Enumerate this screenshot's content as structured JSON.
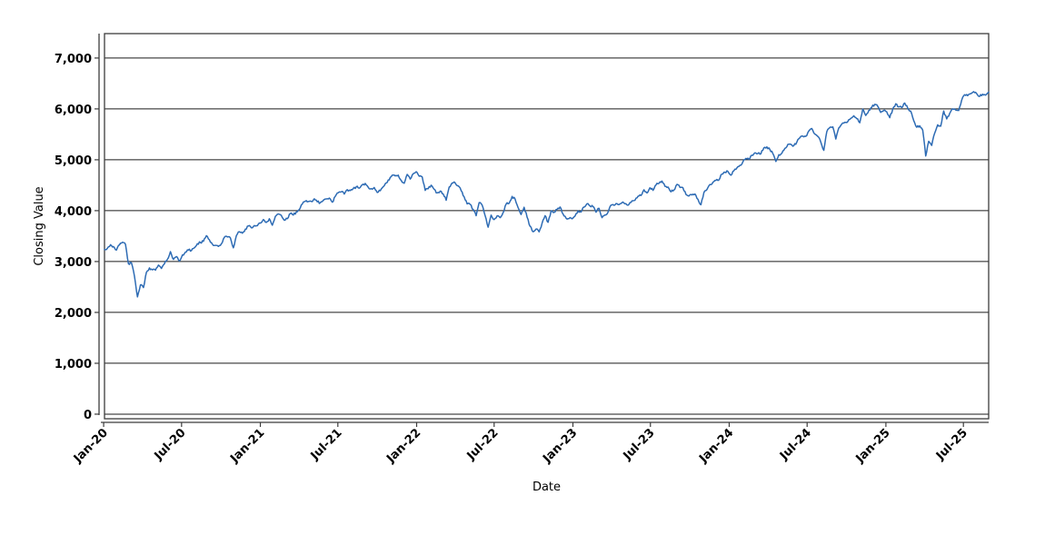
{
  "chart_data": {
    "type": "line",
    "title": "",
    "xlabel": "Date",
    "ylabel": "Closing Value",
    "legend": "none",
    "grid": "horizontal-only",
    "background_color": "#ffffff",
    "line_color": "#2d6bb4",
    "grid_color": "#1a1a1a",
    "ylim": [
      -90,
      7480
    ],
    "y_ticks": [
      0,
      1000,
      2000,
      3000,
      4000,
      5000,
      6000,
      7000
    ],
    "y_tick_labels": [
      "0",
      "1,000",
      "2,000",
      "3,000",
      "4,000",
      "5,000",
      "6,000",
      "7,000"
    ],
    "x_ticks": [
      {
        "label": "Jan-20",
        "date": "2020-01-01"
      },
      {
        "label": "Jul-20",
        "date": "2020-07-01"
      },
      {
        "label": "Jan-21",
        "date": "2021-01-01"
      },
      {
        "label": "Jul-21",
        "date": "2021-07-01"
      },
      {
        "label": "Jan-22",
        "date": "2022-01-01"
      },
      {
        "label": "Jul-22",
        "date": "2022-07-01"
      },
      {
        "label": "Jan-23",
        "date": "2023-01-01"
      },
      {
        "label": "Jul-23",
        "date": "2023-07-01"
      },
      {
        "label": "Jan-24",
        "date": "2024-01-01"
      },
      {
        "label": "Jul-24",
        "date": "2024-07-01"
      },
      {
        "label": "Jan-25",
        "date": "2025-01-01"
      },
      {
        "label": "Jul-25",
        "date": "2025-07-01"
      }
    ],
    "series": [
      {
        "name": "Closing Value",
        "start_date": "2020-01-03",
        "step_days": 7,
        "values": [
          3235,
          3265,
          3330,
          3295,
          3226,
          3328,
          3380,
          3338,
          2954,
          2972,
          2711,
          2305,
          2541,
          2489,
          2790,
          2875,
          2837,
          2831,
          2930,
          2864,
          2955,
          3044,
          3194,
          3041,
          3098,
          3009,
          3130,
          3185,
          3225,
          3216,
          3271,
          3351,
          3373,
          3397,
          3508,
          3427,
          3341,
          3319,
          3298,
          3348,
          3477,
          3484,
          3465,
          3270,
          3509,
          3585,
          3558,
          3638,
          3699,
          3663,
          3709,
          3703,
          3756,
          3825,
          3768,
          3841,
          3714,
          3887,
          3935,
          3907,
          3811,
          3842,
          3943,
          3913,
          3975,
          4020,
          4129,
          4185,
          4180,
          4181,
          4233,
          4174,
          4156,
          4204,
          4230,
          4247,
          4166,
          4281,
          4352,
          4370,
          4327,
          4412,
          4395,
          4437,
          4468,
          4442,
          4509,
          4535,
          4459,
          4433,
          4455,
          4357,
          4391,
          4471,
          4545,
          4605,
          4698,
          4683,
          4698,
          4595,
          4538,
          4712,
          4621,
          4726,
          4766,
          4677,
          4663,
          4398,
          4432,
          4501,
          4419,
          4349,
          4385,
          4329,
          4204,
          4463,
          4543,
          4546,
          4488,
          4393,
          4272,
          4132,
          4123,
          4024,
          3901,
          4158,
          4109,
          3901,
          3675,
          3912,
          3825,
          3899,
          3863,
          3962,
          4130,
          4145,
          4280,
          4228,
          4058,
          3924,
          4067,
          3873,
          3693,
          3586,
          3640,
          3583,
          3753,
          3901,
          3771,
          3993,
          3965,
          4026,
          4072,
          3934,
          3852,
          3845,
          3840,
          3895,
          3999,
          3973,
          4071,
          4136,
          4090,
          4079,
          3970,
          4046,
          3862,
          3917,
          3971,
          4109,
          4105,
          4138,
          4134,
          4169,
          4136,
          4124,
          4192,
          4205,
          4282,
          4299,
          4410,
          4348,
          4450,
          4399,
          4505,
          4536,
          4582,
          4478,
          4464,
          4370,
          4406,
          4516,
          4457,
          4450,
          4320,
          4288,
          4309,
          4328,
          4224,
          4117,
          4358,
          4415,
          4514,
          4559,
          4595,
          4604,
          4719,
          4755,
          4770,
          4697,
          4784,
          4840,
          4891,
          4959,
          5027,
          5006,
          5089,
          5137,
          5124,
          5117,
          5234,
          5254,
          5204,
          5123,
          4967,
          5100,
          5128,
          5223,
          5303,
          5305,
          5278,
          5347,
          5432,
          5465,
          5460,
          5567,
          5615,
          5505,
          5459,
          5347,
          5186,
          5554,
          5635,
          5648,
          5408,
          5626,
          5703,
          5738,
          5751,
          5815,
          5865,
          5808,
          5729,
          5996,
          5871,
          5969,
          6032,
          6090,
          6051,
          5931,
          5971,
          5942,
          5827,
          5997,
          6101,
          6041,
          6026,
          6115,
          6013,
          5955,
          5770,
          5639,
          5668,
          5581,
          5074,
          5363,
          5283,
          5525,
          5687,
          5660,
          5958,
          5803,
          5912,
          6000,
          5977,
          5968,
          6173,
          6279,
          6260,
          6297,
          6339,
          6300,
          6245,
          6290,
          6270,
          6330
        ]
      }
    ],
    "render_jitter": {
      "subdivisions": 3,
      "amplitude": 26,
      "seed": 42
    }
  }
}
